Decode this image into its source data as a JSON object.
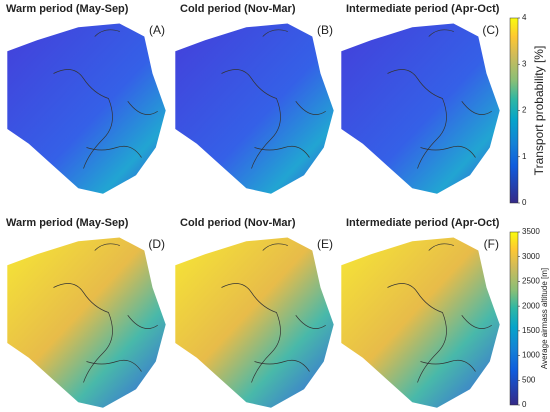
{
  "panels": [
    {
      "title": "Warm period (May-Sep)",
      "label": "(A)"
    },
    {
      "title": "Cold period (Nov-Mar)",
      "label": "(B)"
    },
    {
      "title": "Intermediate period (Apr-Oct)",
      "label": "(C)"
    },
    {
      "title": "Warm period (May-Sep)",
      "label": "(D)"
    },
    {
      "title": "Cold period (Nov-Mar)",
      "label": "(E)"
    },
    {
      "title": "Intermediate period (Apr-Oct)",
      "label": "(F)"
    }
  ],
  "colorbars": [
    {
      "label": "Transport probability [%]",
      "lim": [
        0,
        4
      ],
      "ticks": [
        0,
        1,
        2,
        3,
        4
      ]
    },
    {
      "label": "Average airmass altitude [m]",
      "lim": [
        0,
        3500
      ],
      "ticks": [
        0,
        500,
        1000,
        1500,
        2000,
        2500,
        3000,
        3500
      ]
    }
  ]
}
